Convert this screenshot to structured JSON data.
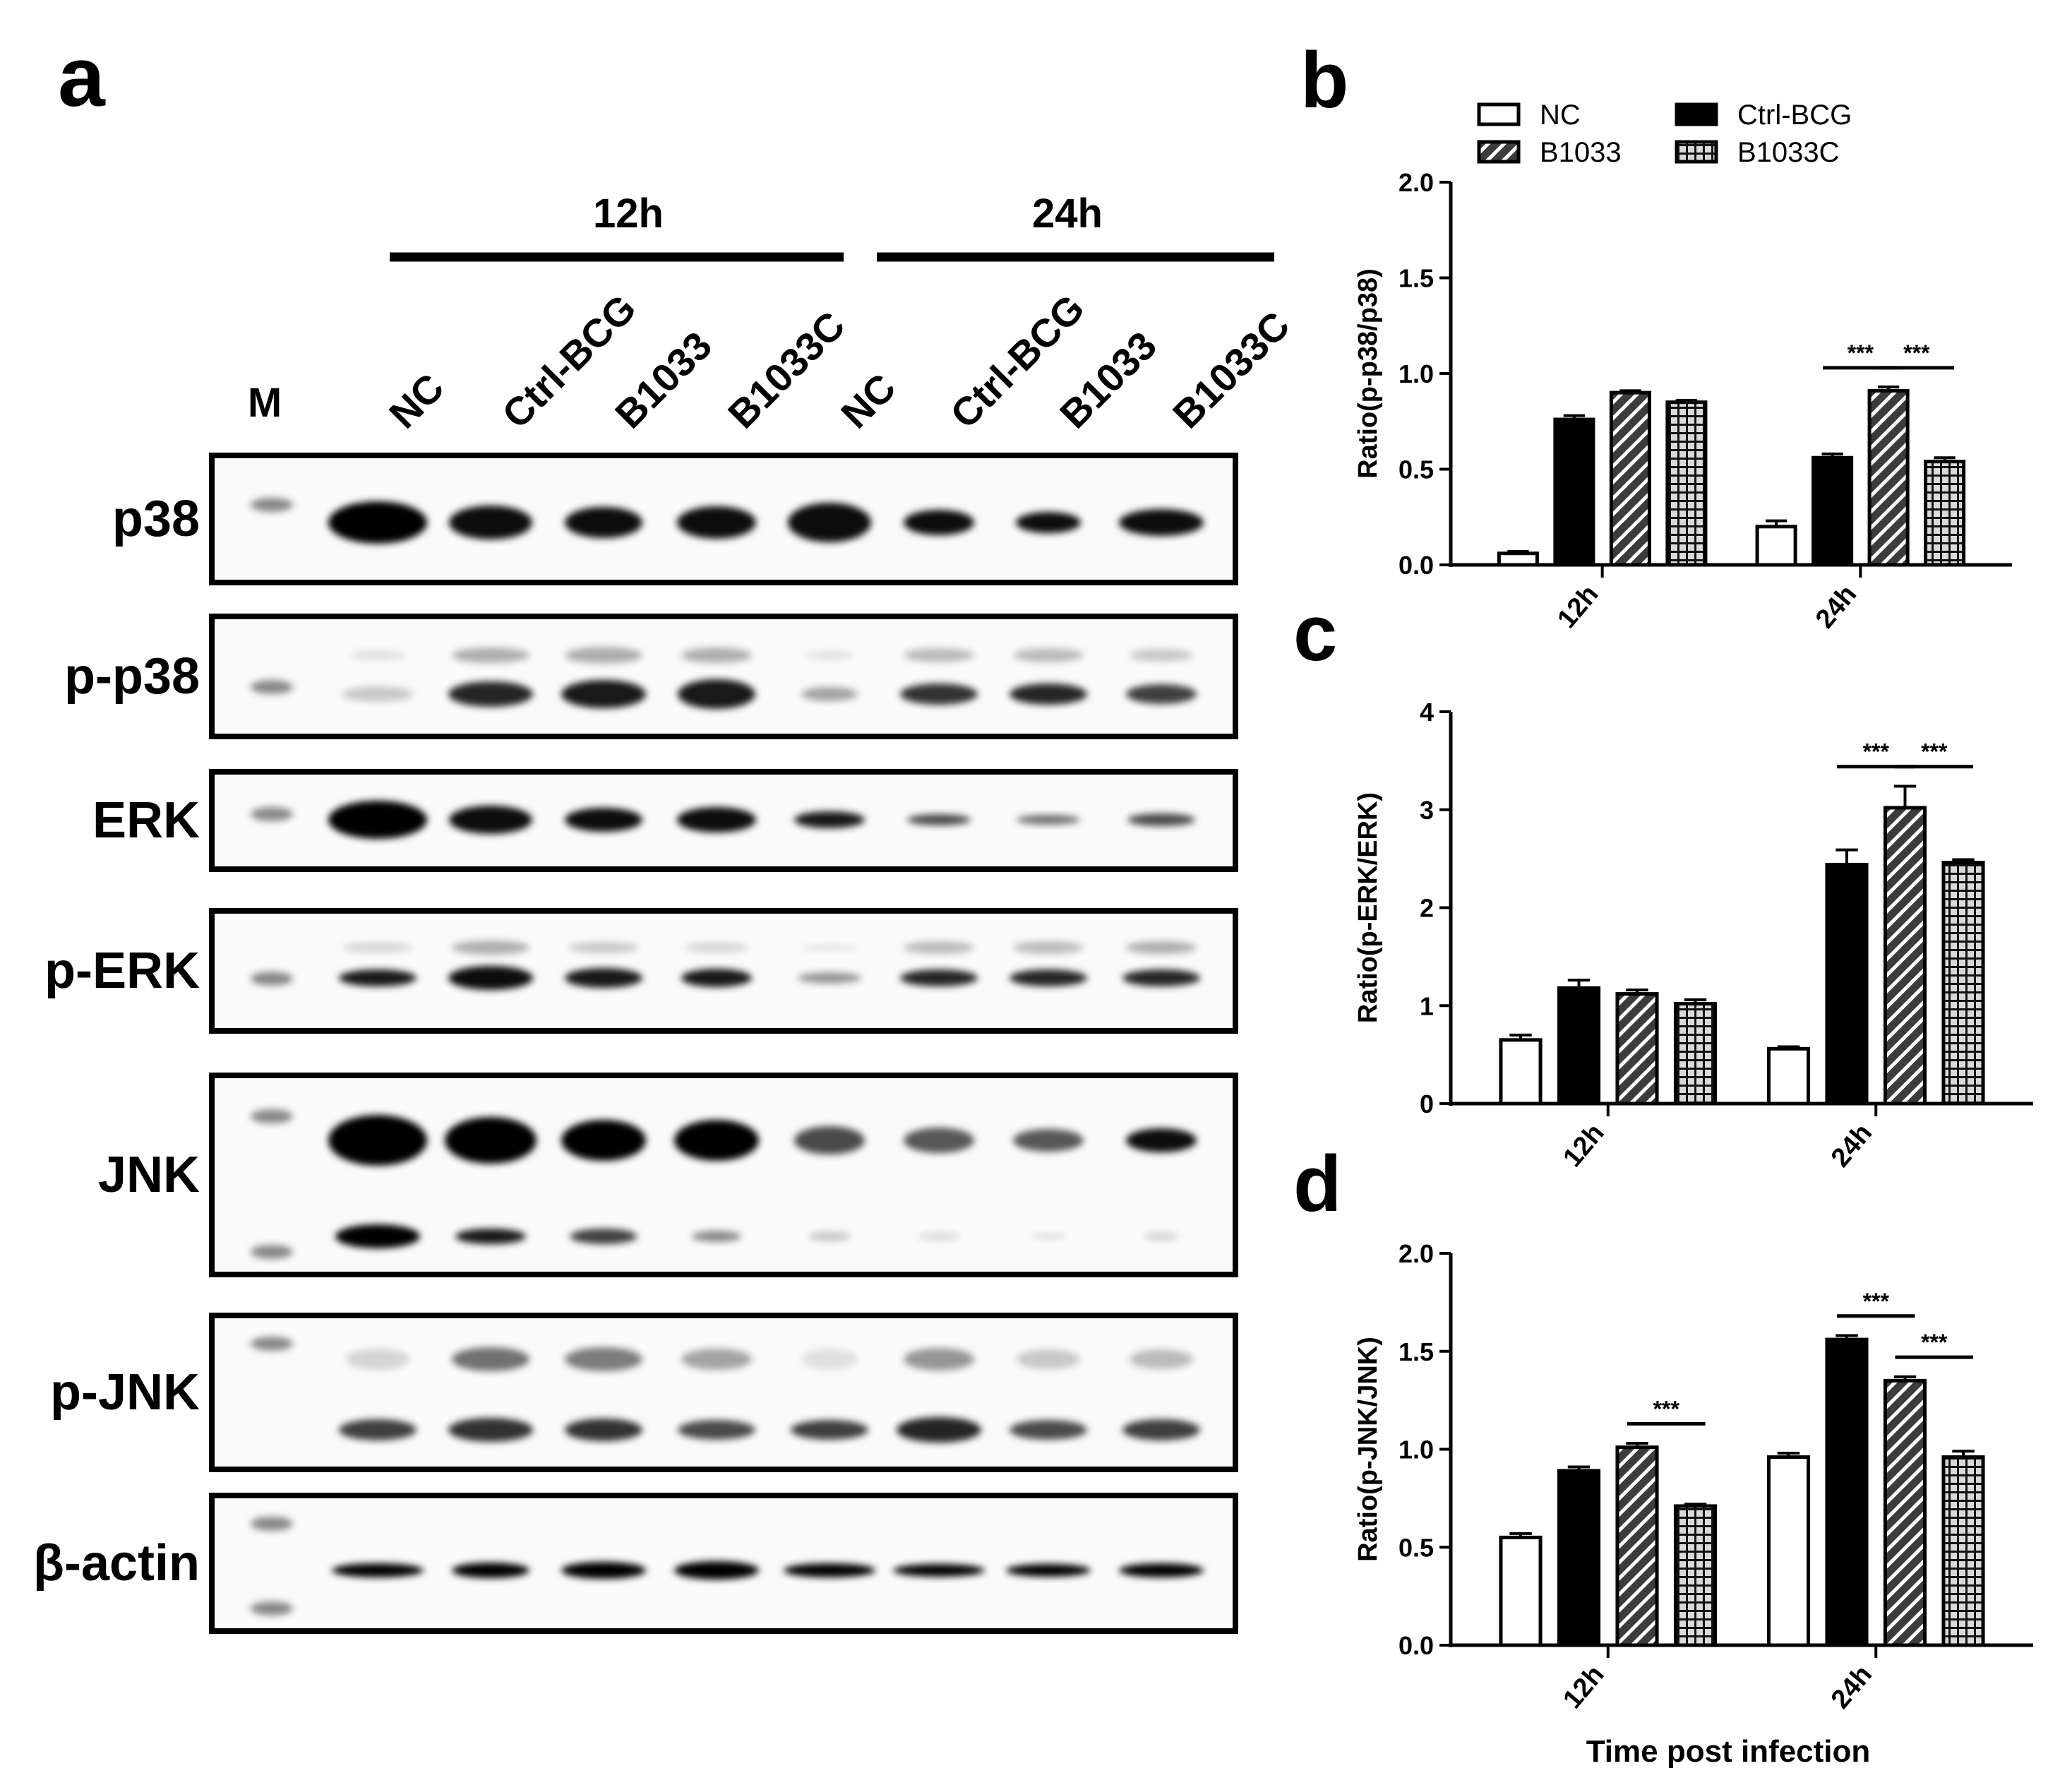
{
  "panel_labels": {
    "a": "a",
    "b": "b",
    "c": "c",
    "d": "d"
  },
  "colors": {
    "ink": "#000000",
    "hatch_bg": "#3c3c3c",
    "grid_bg": "#d9d9d9",
    "blot_bg": "#fafafa"
  },
  "blot": {
    "time_groups": [
      "12h",
      "24h"
    ],
    "marker_label": "M",
    "lanes": [
      "NC",
      "Ctrl-BCG",
      "B1033",
      "B1033C",
      "NC",
      "Ctrl-BCG",
      "B1033",
      "B1033C"
    ],
    "rows": [
      "p38",
      "p-p38",
      "ERK",
      "p-ERK",
      "JNK",
      "p-JNK",
      "β-actin"
    ]
  },
  "legend": [
    "NC",
    "Ctrl-BCG",
    "B1033",
    "B1033C"
  ],
  "x_title": "Time post infection",
  "chart_data": [
    {
      "panel": "b",
      "type": "bar",
      "ylabel": "Ratio(p-p38/p38)",
      "ylim": [
        0,
        2.0
      ],
      "yticks": [
        "0.0",
        "0.5",
        "1.0",
        "1.5",
        "2.0"
      ],
      "categories": [
        "12h",
        "24h"
      ],
      "series": [
        {
          "name": "NC",
          "values": [
            0.06,
            0.2
          ],
          "errors": [
            0.01,
            0.03
          ]
        },
        {
          "name": "Ctrl-BCG",
          "values": [
            0.76,
            0.56
          ],
          "errors": [
            0.02,
            0.02
          ]
        },
        {
          "name": "B1033",
          "values": [
            0.9,
            0.91
          ],
          "errors": [
            0.01,
            0.02
          ]
        },
        {
          "name": "B1033C",
          "values": [
            0.85,
            0.54
          ],
          "errors": [
            0.01,
            0.02
          ]
        }
      ],
      "significance": [
        {
          "category": "24h",
          "from": "Ctrl-BCG",
          "to": "B1033",
          "label": "***"
        },
        {
          "category": "24h",
          "from": "B1033",
          "to": "B1033C",
          "label": "***"
        }
      ]
    },
    {
      "panel": "c",
      "type": "bar",
      "ylabel": "Ratio(p-ERK/ERK)",
      "ylim": [
        0,
        4
      ],
      "yticks": [
        "0",
        "1",
        "2",
        "3",
        "4"
      ],
      "categories": [
        "12h",
        "24h"
      ],
      "series": [
        {
          "name": "NC",
          "values": [
            0.65,
            0.56
          ],
          "errors": [
            0.05,
            0.02
          ]
        },
        {
          "name": "Ctrl-BCG",
          "values": [
            1.18,
            2.44
          ],
          "errors": [
            0.08,
            0.15
          ]
        },
        {
          "name": "B1033",
          "values": [
            1.12,
            3.02
          ],
          "errors": [
            0.04,
            0.22
          ]
        },
        {
          "name": "B1033C",
          "values": [
            1.02,
            2.46
          ],
          "errors": [
            0.04,
            0.03
          ]
        }
      ],
      "significance": [
        {
          "category": "24h",
          "from": "Ctrl-BCG",
          "to": "B1033",
          "label": "***"
        },
        {
          "category": "24h",
          "from": "B1033",
          "to": "B1033C",
          "label": "***"
        }
      ]
    },
    {
      "panel": "d",
      "type": "bar",
      "ylabel": "Ratio(p-JNK/JNK)",
      "ylim": [
        0,
        2.0
      ],
      "yticks": [
        "0.0",
        "0.5",
        "1.0",
        "1.5",
        "2.0"
      ],
      "categories": [
        "12h",
        "24h"
      ],
      "series": [
        {
          "name": "NC",
          "values": [
            0.55,
            0.96
          ],
          "errors": [
            0.02,
            0.02
          ]
        },
        {
          "name": "Ctrl-BCG",
          "values": [
            0.89,
            1.56
          ],
          "errors": [
            0.02,
            0.02
          ]
        },
        {
          "name": "B1033",
          "values": [
            1.01,
            1.35
          ],
          "errors": [
            0.02,
            0.02
          ]
        },
        {
          "name": "B1033C",
          "values": [
            0.71,
            0.96
          ],
          "errors": [
            0.01,
            0.03
          ]
        }
      ],
      "significance": [
        {
          "category": "12h",
          "from": "B1033",
          "to": "B1033C",
          "label": "***"
        },
        {
          "category": "24h",
          "from": "Ctrl-BCG",
          "to": "B1033",
          "label": "***"
        },
        {
          "category": "24h",
          "from": "B1033",
          "to": "B1033C",
          "label": "***"
        }
      ]
    }
  ]
}
